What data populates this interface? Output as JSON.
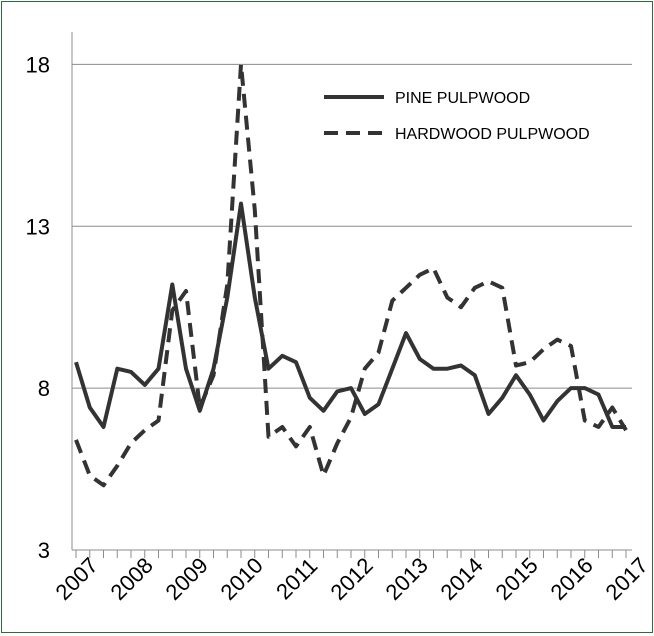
{
  "chart_data": {
    "type": "line",
    "title": "",
    "xlabel": "",
    "ylabel": "",
    "ylim": [
      3,
      19
    ],
    "yticks": [
      3,
      8,
      13,
      18
    ],
    "grid": "horizontal",
    "legend_position": "top-right",
    "year_labels": [
      "2007",
      "2008",
      "2009",
      "2010",
      "2011",
      "2012",
      "2013",
      "2014",
      "2015",
      "2016",
      "2017"
    ],
    "quarter_count": 41,
    "series": [
      {
        "name": "PINE PULPWOOD",
        "style": "solid",
        "color": "#333333",
        "values": [
          8.8,
          7.4,
          6.8,
          8.6,
          8.5,
          8.1,
          8.6,
          11.2,
          8.6,
          7.3,
          8.6,
          10.8,
          13.7,
          10.8,
          8.6,
          9.0,
          8.8,
          7.7,
          7.3,
          7.9,
          8.0,
          7.2,
          7.5,
          8.6,
          9.7,
          8.9,
          8.6,
          8.6,
          8.7,
          8.4,
          7.2,
          7.7,
          8.4,
          7.8,
          7.0,
          7.6,
          8.0,
          8.0,
          7.8,
          6.8,
          6.8
        ]
      },
      {
        "name": "HARDWOOD PULPWOOD",
        "style": "dashed",
        "color": "#333333",
        "values": [
          6.4,
          5.3,
          5.0,
          5.6,
          6.3,
          6.7,
          7.0,
          10.4,
          11.0,
          7.4,
          8.4,
          11.2,
          18.0,
          13.5,
          6.5,
          6.8,
          6.2,
          6.8,
          5.3,
          6.3,
          7.1,
          8.6,
          9.1,
          10.7,
          11.1,
          11.5,
          11.7,
          10.8,
          10.5,
          11.1,
          11.3,
          11.1,
          8.7,
          8.8,
          9.2,
          9.5,
          9.3,
          7.0,
          6.8,
          7.4,
          6.7
        ]
      }
    ]
  }
}
